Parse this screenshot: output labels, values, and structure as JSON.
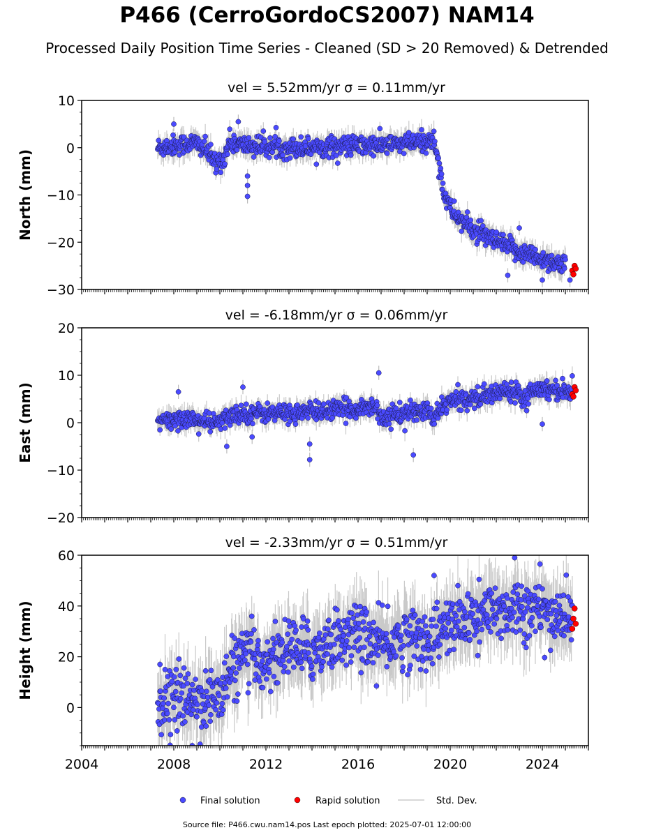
{
  "header": {
    "title": "P466 (CerroGordoCS2007) NAM14",
    "subtitle": "Processed Daily Position Time Series - Cleaned (SD > 20 Removed) & Detrended"
  },
  "footer": {
    "source": "Source file: P466.cwu.nam14.pos  Last epoch plotted: 2025-07-01 12:00:00"
  },
  "legend": {
    "final": "Final solution",
    "rapid": "Rapid solution",
    "std": "Std. Dev."
  },
  "colors": {
    "final": "#4a4aff",
    "rapid": "#ff0000",
    "std": "#bbbbbb"
  },
  "chart_data": [
    {
      "type": "scatter",
      "panel": "north",
      "title": "vel = 5.52mm/yr   σ = 0.11mm/yr",
      "ylabel": "North (mm)",
      "xlim": [
        2004.0,
        2026.0
      ],
      "ylim": [
        -30,
        10
      ],
      "yticks": [
        10,
        0,
        -10,
        -20,
        -30
      ],
      "ytick_labels": [
        "10",
        "0",
        "−10",
        "−20",
        "−30"
      ],
      "final_trend": [
        [
          2007.3,
          0
        ],
        [
          2008.0,
          0.5
        ],
        [
          2009.0,
          1.0
        ],
        [
          2009.5,
          -1.0
        ],
        [
          2009.8,
          -3.5
        ],
        [
          2010.2,
          -2.0
        ],
        [
          2010.4,
          1.2
        ],
        [
          2011.0,
          0.5
        ],
        [
          2013.0,
          0
        ],
        [
          2015.0,
          0.3
        ],
        [
          2017.0,
          0.5
        ],
        [
          2018.5,
          1.0
        ],
        [
          2019.3,
          1.5
        ],
        [
          2019.5,
          -3
        ],
        [
          2019.7,
          -9
        ],
        [
          2020.0,
          -13
        ],
        [
          2020.5,
          -15.5
        ],
        [
          2021.0,
          -17.5
        ],
        [
          2022.0,
          -20
        ],
        [
          2023.0,
          -22
        ],
        [
          2024.0,
          -23.5
        ],
        [
          2025.0,
          -25
        ]
      ],
      "outliers": [
        [
          2008.0,
          5.0
        ],
        [
          2010.8,
          5.5
        ],
        [
          2011.2,
          -6.0
        ],
        [
          2011.2,
          -8.0
        ],
        [
          2011.2,
          -10.3
        ],
        [
          2023.0,
          -17.0
        ],
        [
          2022.5,
          -27.0
        ],
        [
          2024.0,
          -28.0
        ],
        [
          2025.2,
          -28.0
        ]
      ],
      "noise": 1.2,
      "rapid": [
        [
          2025.3,
          -26.0
        ],
        [
          2025.4,
          -25.0
        ],
        [
          2025.35,
          -26.8
        ],
        [
          2025.45,
          -25.6
        ]
      ]
    },
    {
      "type": "scatter",
      "panel": "east",
      "title": "vel = -6.18mm/yr   σ = 0.06mm/yr",
      "ylabel": "East (mm)",
      "xlim": [
        2004.0,
        2026.0
      ],
      "ylim": [
        -20,
        20
      ],
      "yticks": [
        20,
        10,
        0,
        -10,
        -20
      ],
      "ytick_labels": [
        "20",
        "10",
        "0",
        "−10",
        "−20"
      ],
      "final_trend": [
        [
          2007.3,
          0
        ],
        [
          2008.5,
          1.0
        ],
        [
          2009.5,
          0
        ],
        [
          2010.0,
          0
        ],
        [
          2010.5,
          1.5
        ],
        [
          2011.0,
          2.0
        ],
        [
          2013.0,
          2.0
        ],
        [
          2016.0,
          3.0
        ],
        [
          2016.8,
          3.5
        ],
        [
          2017.0,
          1.0
        ],
        [
          2018.0,
          2.0
        ],
        [
          2019.0,
          2.5
        ],
        [
          2019.3,
          0.5
        ],
        [
          2019.7,
          4.0
        ],
        [
          2020.5,
          5.0
        ],
        [
          2021.5,
          5.5
        ],
        [
          2022.5,
          7.0
        ],
        [
          2023.0,
          6.5
        ],
        [
          2023.3,
          5.0
        ],
        [
          2023.6,
          7.5
        ],
        [
          2024.5,
          7.0
        ],
        [
          2025.3,
          6.5
        ]
      ],
      "outliers": [
        [
          2008.2,
          6.5
        ],
        [
          2011.0,
          7.5
        ],
        [
          2011.4,
          -3.0
        ],
        [
          2013.9,
          -4.5
        ],
        [
          2013.9,
          -7.8
        ],
        [
          2016.9,
          10.5
        ],
        [
          2018.4,
          -6.8
        ],
        [
          2024.0,
          -0.3
        ],
        [
          2010.3,
          -5.0
        ]
      ],
      "noise": 1.1,
      "rapid": [
        [
          2025.3,
          6.0
        ],
        [
          2025.4,
          7.5
        ],
        [
          2025.35,
          5.5
        ],
        [
          2025.45,
          6.8
        ]
      ]
    },
    {
      "type": "scatter",
      "panel": "height",
      "title": "vel = -2.33mm/yr   σ = 0.51mm/yr",
      "ylabel": "Height (mm)",
      "xlim": [
        2004.0,
        2026.0
      ],
      "ylim": [
        -15,
        60
      ],
      "yticks": [
        60,
        40,
        20,
        0
      ],
      "ytick_labels": [
        "60",
        "40",
        "20",
        "0"
      ],
      "final_trend": [
        [
          2007.3,
          2
        ],
        [
          2008.0,
          4
        ],
        [
          2009.0,
          3
        ],
        [
          2010.0,
          4
        ],
        [
          2010.5,
          15
        ],
        [
          2011.0,
          20
        ],
        [
          2012.0,
          18
        ],
        [
          2013.0,
          24
        ],
        [
          2014.0,
          22
        ],
        [
          2015.0,
          27
        ],
        [
          2016.0,
          30
        ],
        [
          2017.0,
          24
        ],
        [
          2018.0,
          28
        ],
        [
          2019.0,
          27
        ],
        [
          2020.0,
          32
        ],
        [
          2021.0,
          35
        ],
        [
          2022.0,
          38
        ],
        [
          2023.0,
          40
        ],
        [
          2024.0,
          37
        ],
        [
          2025.3,
          36
        ]
      ],
      "outliers": [
        [
          2007.4,
          17
        ],
        [
          2008.8,
          -15
        ],
        [
          2019.3,
          52
        ],
        [
          2022.8,
          59
        ],
        [
          2023.9,
          56.5
        ],
        [
          2024.1,
          19.7
        ],
        [
          2021.2,
          20.5
        ],
        [
          2016.8,
          8.5
        ]
      ],
      "noise": 6.5,
      "rapid": [
        [
          2025.3,
          31.0
        ],
        [
          2025.4,
          39.0
        ],
        [
          2025.35,
          35.0
        ],
        [
          2025.45,
          33.0
        ]
      ]
    }
  ],
  "x_axis": {
    "ticks": [
      2004,
      2008,
      2012,
      2016,
      2020,
      2024
    ],
    "tick_labels": [
      "2004",
      "2008",
      "2012",
      "2016",
      "2020",
      "2024"
    ]
  }
}
